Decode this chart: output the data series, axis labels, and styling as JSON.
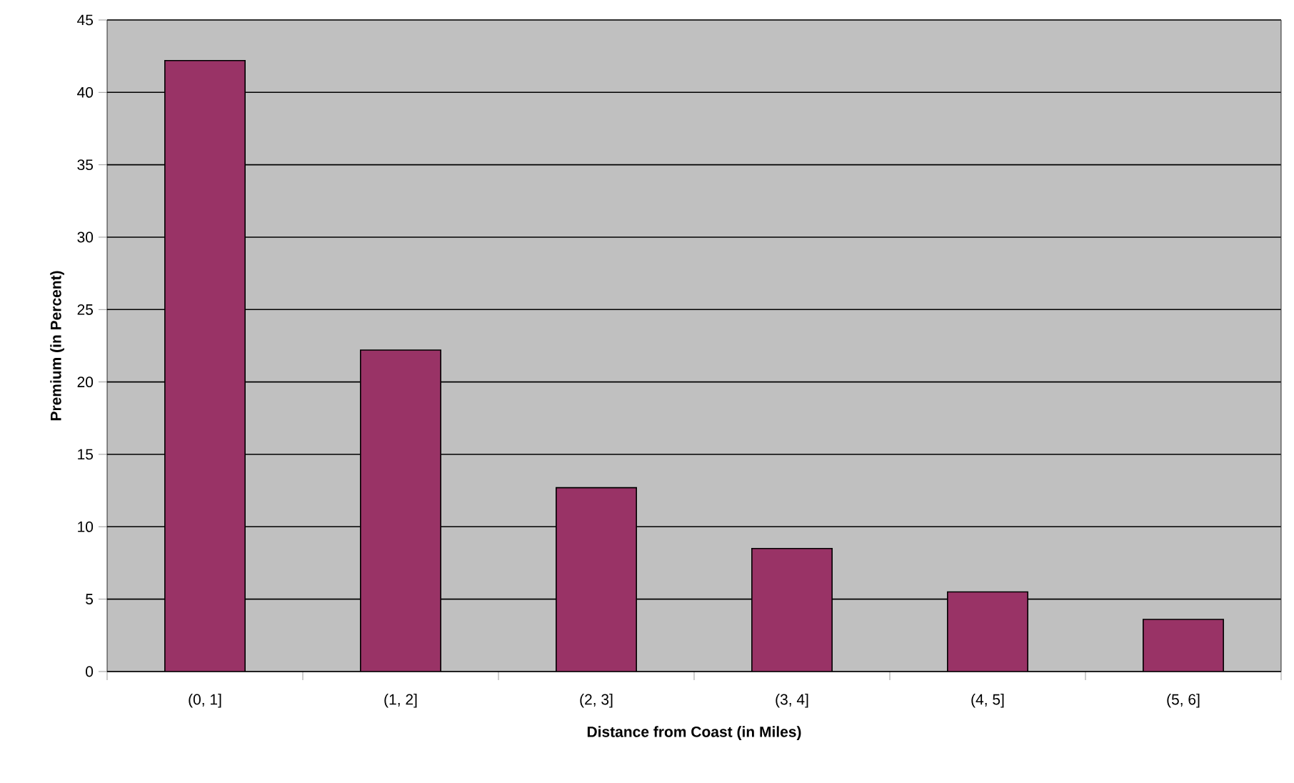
{
  "chart_data": {
    "type": "bar",
    "xlabel": "Distance from Coast (in Miles)",
    "ylabel": "Premium (in Percent)",
    "categories": [
      "(0, 1]",
      "(1, 2]",
      "(2, 3]",
      "(3, 4]",
      "(4, 5]",
      "(5, 6]"
    ],
    "values": [
      42.2,
      22.2,
      12.7,
      8.5,
      5.5,
      3.6
    ],
    "color": "#993366",
    "ylim": [
      0,
      45
    ],
    "yticks": [
      0,
      5,
      10,
      15,
      20,
      25,
      30,
      35,
      40,
      45
    ],
    "grid": "y"
  }
}
